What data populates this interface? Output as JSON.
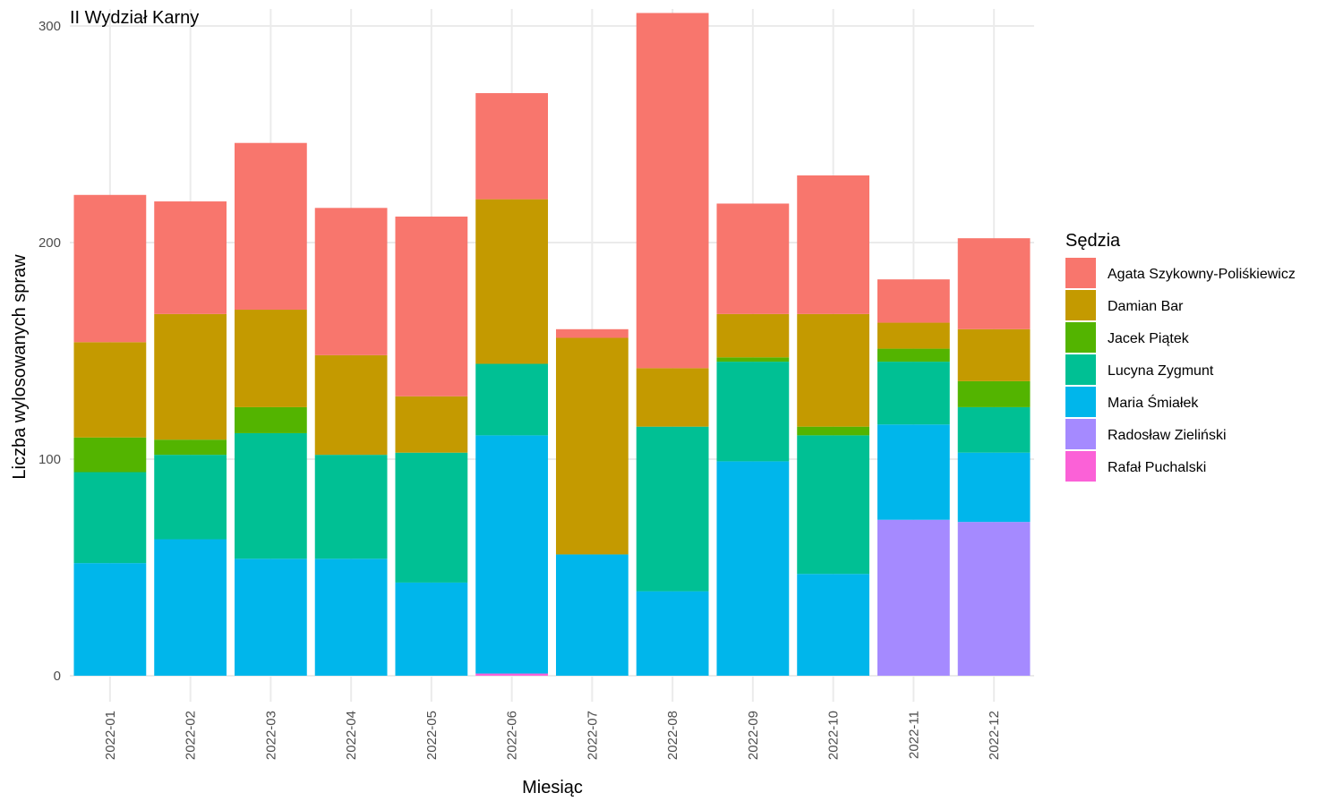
{
  "chart_data": {
    "type": "bar",
    "stacked": true,
    "title": "II Wydział Karny",
    "xlabel": "Miesiąc",
    "ylabel": "Liczba wylosowanych spraw",
    "ylim": [
      -12,
      312
    ],
    "yticks": [
      0,
      100,
      200,
      300
    ],
    "grid": true,
    "legend_position": "right",
    "legend_title": "Sędzia",
    "categories": [
      "2022-01",
      "2022-02",
      "2022-03",
      "2022-04",
      "2022-05",
      "2022-06",
      "2022-07",
      "2022-08",
      "2022-09",
      "2022-10",
      "2022-11",
      "2022-12"
    ],
    "series": [
      {
        "name": "Agata Szykowny-Poliśkiewicz",
        "color": "#F8766D",
        "values": [
          68,
          52,
          77,
          68,
          83,
          49,
          4,
          164,
          51,
          64,
          20,
          42
        ]
      },
      {
        "name": "Damian Bar",
        "color": "#C49A00",
        "values": [
          44,
          58,
          45,
          46,
          26,
          76,
          100,
          27,
          20,
          52,
          12,
          24
        ]
      },
      {
        "name": "Jacek Piątek",
        "color": "#53B400",
        "values": [
          16,
          7,
          12,
          0,
          0,
          0,
          0,
          0,
          2,
          4,
          6,
          12
        ]
      },
      {
        "name": "Lucyna Zygmunt",
        "color": "#00C094",
        "values": [
          42,
          39,
          58,
          48,
          60,
          33,
          0,
          76,
          46,
          64,
          29,
          21
        ]
      },
      {
        "name": "Maria Śmiałek",
        "color": "#00B6EB",
        "values": [
          52,
          63,
          54,
          54,
          43,
          110,
          56,
          39,
          99,
          47,
          44,
          32
        ]
      },
      {
        "name": "Radosław Zieliński",
        "color": "#A58AFF",
        "values": [
          0,
          0,
          0,
          0,
          0,
          0,
          0,
          0,
          0,
          0,
          72,
          71
        ]
      },
      {
        "name": "Rafał Puchalski",
        "color": "#FB61D7",
        "values": [
          0,
          0,
          0,
          0,
          0,
          1,
          0,
          0,
          0,
          0,
          0,
          0
        ]
      }
    ]
  }
}
